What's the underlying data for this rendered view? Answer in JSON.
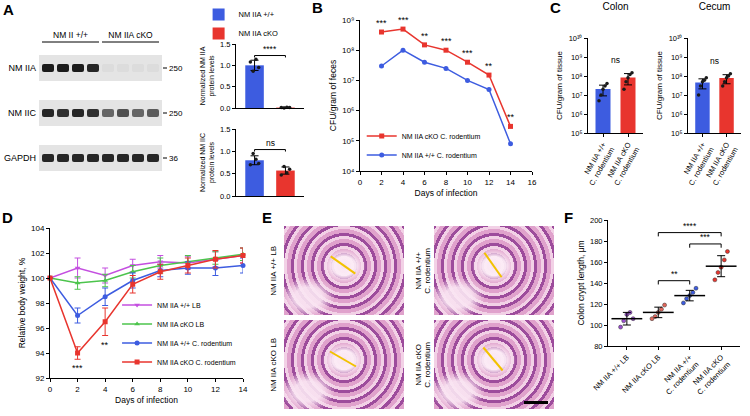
{
  "blot": {
    "panel": "A",
    "groups": [
      "NM II +/+",
      "NM IIA cKO"
    ],
    "rows": [
      {
        "label": "NM IIA",
        "mw": "250",
        "bands": [
          0.95,
          0.95,
          0.95,
          0.9,
          0.04,
          0.04,
          0.04,
          0.04
        ]
      },
      {
        "label": "NM IIC",
        "mw": "250",
        "bands": [
          0.9,
          0.85,
          0.9,
          0.85,
          0.6,
          0.7,
          0.6,
          0.65
        ]
      },
      {
        "label": "GAPDH",
        "mw": "36",
        "bands": [
          0.9,
          0.9,
          0.9,
          0.9,
          0.9,
          0.9,
          0.9,
          0.9
        ]
      }
    ]
  },
  "chart_data": [
    {
      "type": "bar",
      "categories": [
        null,
        null
      ],
      "series": [
        {
          "name": "NM IIA +/+",
          "color": "#3d5ce0",
          "values": [
            1.0,
            null
          ],
          "errors": [
            0.12,
            null
          ],
          "points": [
            [
              1.08,
              0.86,
              1.14,
              0.95
            ],
            null
          ]
        },
        {
          "name": "NM IIA cKO",
          "color": "#e8352e",
          "values": [
            null,
            0.01
          ],
          "errors": [
            null,
            0.01
          ],
          "points": [
            null,
            [
              0.01,
              0.0,
              0.02,
              0.01
            ]
          ]
        }
      ],
      "y_label": "Normalized NM IIA protein levels",
      "ylim": [
        0,
        1.5
      ],
      "yticks": [
        {
          "value": 0,
          "label": "0.0"
        },
        0.5,
        {
          "value": 1,
          "label": "1.0"
        },
        1.5
      ],
      "comparisons": [
        {
          "from": 0,
          "to": 1,
          "label": "****"
        }
      ],
      "legend": "top left",
      "tick_labels": "y"
    },
    {
      "type": "bar",
      "categories": [
        null,
        null
      ],
      "values": [
        0.8,
        0.57
      ],
      "colors": [
        "#3d5ce0",
        "#e8352e"
      ],
      "errors": [
        0.1,
        0.08
      ],
      "points": [
        [
          0.7,
          0.95,
          0.82,
          0.73
        ],
        [
          0.47,
          0.66,
          0.52,
          0.6
        ]
      ],
      "y_label": "Normalized NM IIC protein levels",
      "ylim": [
        0,
        1.5
      ],
      "yticks": [
        {
          "value": 0,
          "label": "0.0"
        },
        0.5,
        {
          "value": 1,
          "label": "1.0"
        },
        1.5
      ],
      "comparisons": [
        {
          "from": 0,
          "to": 1,
          "label": "ns"
        }
      ],
      "tick_labels": "y"
    },
    {
      "type": "line",
      "panel": "B",
      "x_label": "Days of infection",
      "y_label": "CFU/gram of feces",
      "log": "y",
      "x": [
        2,
        4,
        6,
        8,
        10,
        12,
        14
      ],
      "xlim": [
        0,
        16
      ],
      "xticks": [
        0,
        2,
        4,
        6,
        8,
        10,
        12,
        14,
        16
      ],
      "ylim": [
        10000,
        1000000000
      ],
      "yticks": [
        {
          "value": 10000,
          "label": "10⁴"
        },
        {
          "value": 100000,
          "label": "10⁵"
        },
        {
          "value": 1000000,
          "label": "10⁶"
        },
        {
          "value": 10000000,
          "label": "10⁷"
        },
        {
          "value": 100000000,
          "label": "10⁸"
        },
        {
          "value": 1000000000,
          "label": "10⁹"
        }
      ],
      "series": [
        {
          "name": "NM IIA cKO C. rodentium",
          "color": "#e8352e",
          "marker": "square",
          "values": [
            400000000,
            500000000,
            150000000,
            100000000,
            40000000,
            15000000,
            300000
          ]
        },
        {
          "name": "NM IIA +/+ C. rodentium",
          "color": "#3d5ce0",
          "marker": "circle",
          "values": [
            30000000,
            100000000,
            40000000,
            25000000,
            10000000,
            5000000,
            80000
          ]
        }
      ],
      "significance": [
        {
          "x": 2,
          "label": "***"
        },
        {
          "x": 4,
          "label": "***"
        },
        {
          "x": 6,
          "label": "**"
        },
        {
          "x": 8,
          "label": "***"
        },
        {
          "x": 10,
          "label": "***"
        },
        {
          "x": 12,
          "label": "**"
        },
        {
          "x": 14,
          "label": "**"
        }
      ],
      "legend": "bottom left"
    },
    {
      "type": "bar",
      "panel": "C",
      "title": "Colon",
      "categories": [
        "NM IIA +/+ C. rodentium",
        "NM IIA cKO C. rodentium"
      ],
      "values": [
        21000000,
        84000000
      ],
      "colors": [
        "#3d5ce0",
        "#e8352e"
      ],
      "errors": [
        12000000,
        50000000
      ],
      "points": [
        [
          5000000,
          10000000,
          20000000,
          30000000,
          40000000
        ],
        [
          20000000,
          50000000,
          80000000,
          120000000,
          150000000
        ]
      ],
      "y_label": "CFU/gram of tissue",
      "log": "y",
      "ylim": [
        100000,
        10000000000
      ],
      "yticks": [
        {
          "value": 100000,
          "label": "10⁵"
        },
        {
          "value": 1000000,
          "label": "10⁶"
        },
        {
          "value": 10000000,
          "label": "10⁷"
        },
        {
          "value": 100000000,
          "label": "10⁸"
        },
        {
          "value": 1000000000,
          "label": "10⁹"
        },
        {
          "value": 10000000000,
          "label": "10¹⁰"
        }
      ],
      "comparisons": [
        {
          "from": 0,
          "to": 1,
          "label": "ns"
        }
      ]
    },
    {
      "type": "bar",
      "title": "Cecum",
      "categories": [
        "NM IIA +/+ C. rodentium",
        "NM IIA cKO C. rodentium"
      ],
      "values": [
        46000000,
        78000000
      ],
      "colors": [
        "#3d5ce0",
        "#e8352e"
      ],
      "errors": [
        25000000,
        39000000
      ],
      "points": [
        [
          10000000,
          30000000,
          50000000,
          60000000,
          80000000
        ],
        [
          30000000,
          50000000,
          80000000,
          100000000,
          130000000
        ]
      ],
      "y_label": "CFU/gram of tissue",
      "log": "y",
      "ylim": [
        100000,
        10000000000
      ],
      "yticks": [
        {
          "value": 100000,
          "label": "10⁵"
        },
        {
          "value": 1000000,
          "label": "10⁶"
        },
        {
          "value": 10000000,
          "label": "10⁷"
        },
        {
          "value": 100000000,
          "label": "10⁸"
        },
        {
          "value": 1000000000,
          "label": "10⁹"
        },
        {
          "value": 10000000000,
          "label": "10¹⁰"
        }
      ],
      "comparisons": [
        {
          "from": 0,
          "to": 1,
          "label": "ns"
        }
      ]
    },
    {
      "type": "line",
      "panel": "D",
      "x_label": "Days of infection",
      "y_label": "Relative body weight, %",
      "x": [
        0,
        2,
        4,
        6,
        8,
        10,
        12,
        14
      ],
      "xlim": [
        0,
        14
      ],
      "xticks": [
        0,
        2,
        4,
        6,
        8,
        10,
        12,
        14
      ],
      "ylim": [
        92,
        104
      ],
      "yticks": [
        92,
        94,
        96,
        98,
        100,
        102,
        104
      ],
      "series": [
        {
          "name": "NM IIA +/+ LB",
          "color": "#c44fe0",
          "marker": "triangle-down",
          "values": [
            100,
            100.8,
            100.2,
            101,
            101.3,
            101.2,
            101.5,
            101.8
          ],
          "errors": [
            0,
            0.8,
            0.6,
            0.5,
            0.5,
            0.5,
            0.6,
            0.6
          ]
        },
        {
          "name": "NM IIA cKO LB",
          "color": "#4cc44c",
          "marker": "triangle-up",
          "values": [
            100,
            99.6,
            99.8,
            100.5,
            101,
            101.3,
            101.6,
            101.9
          ],
          "errors": [
            0,
            0.5,
            0.5,
            0.5,
            0.6,
            0.5,
            0.5,
            0.5
          ]
        },
        {
          "name": "NM IIA +/+ C. rodentium",
          "color": "#3d5ce0",
          "marker": "circle",
          "values": [
            100,
            97,
            98.5,
            99.8,
            100.6,
            100.8,
            100.8,
            101
          ],
          "errors": [
            0,
            0.6,
            0.7,
            0.6,
            0.5,
            0.5,
            0.6,
            0.6
          ]
        },
        {
          "name": "NM IIA cKO C. rodentium",
          "color": "#e8352e",
          "marker": "square",
          "values": [
            100,
            94,
            96.5,
            99.5,
            100.5,
            101,
            101.5,
            101.8
          ],
          "errors": [
            0,
            0.5,
            1.1,
            0.7,
            0.6,
            0.6,
            0.7,
            0.6
          ]
        }
      ],
      "significance": [
        {
          "x": 2,
          "label": "***"
        },
        {
          "x": 4,
          "label": "**"
        }
      ],
      "legend": "bottom right"
    },
    {
      "type": "dot",
      "panel": "F",
      "categories": [
        "NM IIA +/+ LB",
        "NM IIA cKO LB",
        "NM IIA +/+ C. rodentium",
        "NM IIA cKO C. rodentium"
      ],
      "values": [
        106,
        112,
        128,
        156
      ],
      "errors": [
        6,
        5,
        5,
        10
      ],
      "colors": [
        "#9b4fd0",
        "#e2665a",
        "#3d5ce0",
        "#e8352e"
      ],
      "points": [
        [
          98,
          104,
          110,
          112,
          106
        ],
        [
          106,
          108,
          112,
          115,
          119
        ],
        [
          121,
          125,
          128,
          131,
          135
        ],
        [
          143,
          150,
          155,
          162,
          170
        ]
      ],
      "y_label": "Colon crypt length, μm",
      "ylim": [
        80,
        200
      ],
      "yticks": [
        80,
        100,
        120,
        140,
        160,
        180,
        200
      ],
      "comparisons": [
        {
          "from": 1,
          "to": 2,
          "label": "**"
        },
        {
          "from": 2,
          "to": 3,
          "label": "***"
        },
        {
          "from": 1,
          "to": 3,
          "label": "****"
        }
      ]
    }
  ],
  "histology": {
    "panel": "E",
    "images": [
      "NM IIA +/+ LB",
      "NM IIA +/+ C. rodentium",
      "NM IIA cKO LB",
      "NM IIA cKO C. rodentium"
    ]
  }
}
